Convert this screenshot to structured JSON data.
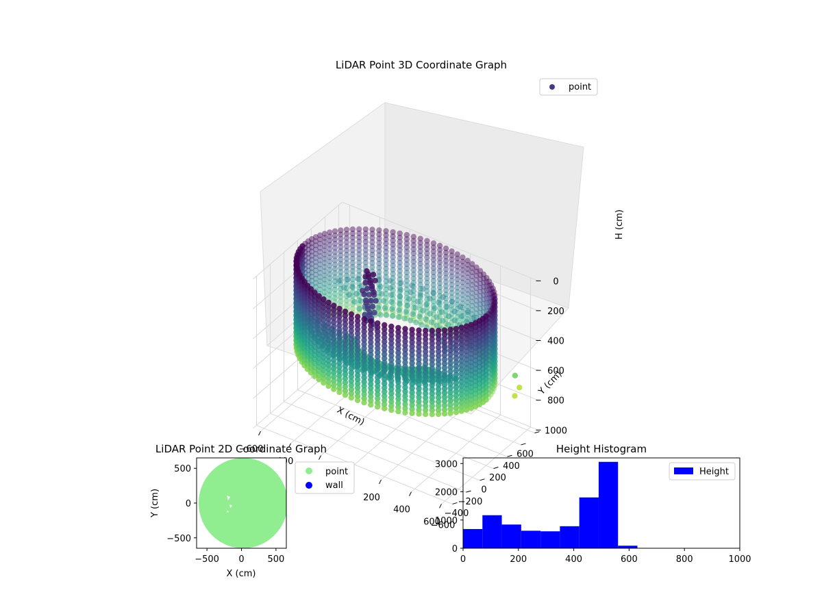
{
  "chart_data": [
    {
      "type": "scatter",
      "projection": "3d",
      "title": "LiDAR Point 3D Coordinate Graph",
      "xlabel": "X (cm)",
      "ylabel": "Y (cm)",
      "zlabel": "H (cm)",
      "xlim": [
        -650,
        650
      ],
      "ylim": [
        -650,
        650
      ],
      "zlim": [
        1000,
        0
      ],
      "xticks": [
        -600,
        -400,
        -200,
        0,
        200,
        400,
        600
      ],
      "yticks": [
        -600,
        -400,
        -200,
        0,
        200,
        400,
        600
      ],
      "zticks": [
        0,
        200,
        400,
        600,
        800,
        1000
      ],
      "colormap": "viridis",
      "legend": {
        "location": "upper right",
        "entries": [
          {
            "label": "point",
            "color": "#443983"
          }
        ]
      },
      "grid": true,
      "series": [
        {
          "name": "point",
          "description_points": "cylindrical wall of radius ~600 cm, heights ~0-560 cm, with inner structure near (-200, 0)",
          "wall_radius": 600,
          "wall_height_range": [
            0,
            560
          ],
          "inner_cluster": [
            {
              "x": -200,
              "y": 0,
              "h": 60
            },
            {
              "x": -180,
              "y": 20,
              "h": 100
            },
            {
              "x": -210,
              "y": -20,
              "h": 150
            },
            {
              "x": -170,
              "y": 10,
              "h": 220
            },
            {
              "x": -220,
              "y": 30,
              "h": 280
            },
            {
              "x": -190,
              "y": -10,
              "h": 330
            },
            {
              "x": -150,
              "y": 40,
              "h": 400
            }
          ],
          "outliers": [
            {
              "x": 620,
              "y": 380,
              "h": 540
            },
            {
              "x": 640,
              "y": 400,
              "h": 620
            },
            {
              "x": 600,
              "y": 420,
              "h": 700
            }
          ]
        }
      ]
    },
    {
      "type": "scatter",
      "title": "LiDAR Point 2D Coordinate Graph",
      "xlabel": "X (cm)",
      "ylabel": "Y (cm)",
      "xlim": [
        -650,
        650
      ],
      "ylim": [
        -650,
        650
      ],
      "xticks": [
        -500,
        0,
        500
      ],
      "yticks": [
        -500,
        0,
        500
      ],
      "legend": {
        "location": "outside right",
        "entries": [
          {
            "label": "point",
            "color": "#90ee90"
          },
          {
            "label": "wall",
            "color": "#0000ff"
          }
        ]
      },
      "series": [
        {
          "name": "point",
          "color": "#90ee90",
          "region": "filled disc, radius ~600 cm, centered at (0, 0)",
          "radius": 600
        },
        {
          "name": "wall",
          "color": "#0000ff",
          "values": []
        }
      ]
    },
    {
      "type": "bar",
      "subtype": "histogram",
      "title": "Height Histogram",
      "xlim": [
        0,
        1000
      ],
      "ylim": [
        0,
        3200
      ],
      "xticks": [
        0,
        200,
        400,
        600,
        800,
        1000
      ],
      "yticks": [
        0,
        1000,
        2000,
        3000
      ],
      "legend": {
        "location": "upper right",
        "entries": [
          {
            "label": "Height",
            "color": "#0000ff"
          }
        ]
      },
      "series": [
        {
          "name": "Height",
          "color": "#0000ff"
        }
      ],
      "bins": [
        {
          "from": 0,
          "to": 70,
          "count": 680
        },
        {
          "from": 70,
          "to": 140,
          "count": 1170
        },
        {
          "from": 140,
          "to": 210,
          "count": 840
        },
        {
          "from": 210,
          "to": 280,
          "count": 620
        },
        {
          "from": 280,
          "to": 350,
          "count": 600
        },
        {
          "from": 350,
          "to": 420,
          "count": 780
        },
        {
          "from": 420,
          "to": 490,
          "count": 1800
        },
        {
          "from": 490,
          "to": 560,
          "count": 3060
        },
        {
          "from": 560,
          "to": 630,
          "count": 90
        }
      ]
    }
  ]
}
